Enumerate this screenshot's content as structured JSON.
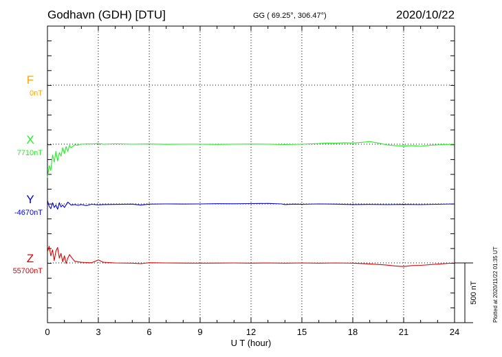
{
  "header": {
    "station": "Godhavn (GDH)  [DTU]",
    "coords": "GG ( 69.25°, 306.47°)",
    "date": "2020/10/22"
  },
  "footer": {
    "plotted": "Plotted at 2020/11/22 01:35 UT"
  },
  "chart_data": {
    "type": "line",
    "xlabel": "U T (hour)",
    "xlim": [
      0,
      24
    ],
    "xticks": [
      0,
      3,
      6,
      9,
      12,
      15,
      18,
      21,
      24
    ],
    "scale_bar": {
      "label": "500 nT",
      "value_nT": 500
    },
    "grid": true,
    "series": [
      {
        "name": "F",
        "baseline_label": "0nT",
        "color": "#FFA500",
        "points": []
      },
      {
        "name": "X",
        "baseline_label": "7710nT",
        "color": "#22EE22",
        "points": [
          [
            0,
            -280
          ],
          [
            0.1,
            -180
          ],
          [
            0.2,
            -220
          ],
          [
            0.3,
            -90
          ],
          [
            0.4,
            -150
          ],
          [
            0.5,
            -60
          ],
          [
            0.6,
            -140
          ],
          [
            0.7,
            -70
          ],
          [
            0.8,
            -100
          ],
          [
            0.9,
            -30
          ],
          [
            1.0,
            -80
          ],
          [
            1.1,
            -20
          ],
          [
            1.2,
            -60
          ],
          [
            1.3,
            -10
          ],
          [
            1.4,
            -30
          ],
          [
            1.6,
            -5
          ],
          [
            1.8,
            -8
          ],
          [
            2.0,
            0
          ],
          [
            2.3,
            2
          ],
          [
            2.6,
            1
          ],
          [
            3.0,
            5
          ],
          [
            3.3,
            0
          ],
          [
            4.0,
            3
          ],
          [
            5.0,
            0
          ],
          [
            6.0,
            2
          ],
          [
            7.0,
            -1
          ],
          [
            8.0,
            0
          ],
          [
            9.0,
            0
          ],
          [
            10.0,
            -2
          ],
          [
            11.0,
            0
          ],
          [
            12.0,
            1
          ],
          [
            13.0,
            0
          ],
          [
            14.0,
            -3
          ],
          [
            15.0,
            0
          ],
          [
            16.0,
            5
          ],
          [
            16.5,
            10
          ],
          [
            17.0,
            8
          ],
          [
            17.5,
            12
          ],
          [
            18.0,
            10
          ],
          [
            18.5,
            15
          ],
          [
            19.0,
            22
          ],
          [
            19.5,
            10
          ],
          [
            20.0,
            -5
          ],
          [
            20.5,
            -12
          ],
          [
            21.0,
            -15
          ],
          [
            21.5,
            -12
          ],
          [
            22.0,
            -18
          ],
          [
            22.5,
            -10
          ],
          [
            23.0,
            -5
          ],
          [
            23.5,
            -2
          ],
          [
            24.0,
            0
          ]
        ]
      },
      {
        "name": "Y",
        "baseline_label": "-4670nT",
        "color": "#0000DD",
        "points": [
          [
            0,
            30
          ],
          [
            0.1,
            -20
          ],
          [
            0.2,
            -40
          ],
          [
            0.3,
            10
          ],
          [
            0.4,
            -30
          ],
          [
            0.5,
            -10
          ],
          [
            0.6,
            -45
          ],
          [
            0.7,
            10
          ],
          [
            0.8,
            -25
          ],
          [
            0.9,
            -10
          ],
          [
            1.0,
            -30
          ],
          [
            1.2,
            15
          ],
          [
            1.4,
            -10
          ],
          [
            1.6,
            -5
          ],
          [
            1.8,
            -12
          ],
          [
            2.0,
            -5
          ],
          [
            2.3,
            -15
          ],
          [
            2.6,
            -3
          ],
          [
            3.0,
            -8
          ],
          [
            3.3,
            -5
          ],
          [
            4.0,
            -4
          ],
          [
            5.0,
            -2
          ],
          [
            5.5,
            -10
          ],
          [
            6.0,
            -2
          ],
          [
            7.0,
            0
          ],
          [
            8.0,
            -1
          ],
          [
            9.0,
            0
          ],
          [
            10.0,
            2
          ],
          [
            11.0,
            1
          ],
          [
            12.0,
            3
          ],
          [
            13.0,
            4
          ],
          [
            13.8,
            0
          ],
          [
            14.0,
            -5
          ],
          [
            14.5,
            -2
          ],
          [
            15.0,
            -3
          ],
          [
            16.0,
            0
          ],
          [
            17.0,
            -2
          ],
          [
            18.0,
            -5
          ],
          [
            19.0,
            -4
          ],
          [
            20.0,
            -6
          ],
          [
            21.0,
            -4
          ],
          [
            22.0,
            -6
          ],
          [
            23.0,
            -3
          ],
          [
            24.0,
            0
          ]
        ]
      },
      {
        "name": "Z",
        "baseline_label": "55700nT",
        "color": "#DD0000",
        "points": [
          [
            0,
            90
          ],
          [
            0.1,
            140
          ],
          [
            0.2,
            60
          ],
          [
            0.3,
            110
          ],
          [
            0.4,
            20
          ],
          [
            0.5,
            100
          ],
          [
            0.6,
            130
          ],
          [
            0.7,
            40
          ],
          [
            0.8,
            80
          ],
          [
            0.9,
            10
          ],
          [
            1.0,
            60
          ],
          [
            1.1,
            -5
          ],
          [
            1.2,
            40
          ],
          [
            1.3,
            70
          ],
          [
            1.4,
            50
          ],
          [
            1.6,
            15
          ],
          [
            1.8,
            10
          ],
          [
            2.0,
            5
          ],
          [
            2.3,
            3
          ],
          [
            2.6,
            2
          ],
          [
            3.0,
            25
          ],
          [
            3.3,
            5
          ],
          [
            4.0,
            0
          ],
          [
            5.0,
            -2
          ],
          [
            5.5,
            -6
          ],
          [
            6.0,
            2
          ],
          [
            7.0,
            0
          ],
          [
            8.0,
            -1
          ],
          [
            9.0,
            -2
          ],
          [
            10.0,
            -1
          ],
          [
            11.0,
            0
          ],
          [
            12.0,
            -2
          ],
          [
            13.0,
            0
          ],
          [
            14.0,
            -2
          ],
          [
            15.0,
            0
          ],
          [
            16.0,
            -2
          ],
          [
            17.0,
            0
          ],
          [
            18.0,
            -2
          ],
          [
            19.0,
            -8
          ],
          [
            20.0,
            -18
          ],
          [
            20.5,
            -25
          ],
          [
            21.0,
            -30
          ],
          [
            21.5,
            -22
          ],
          [
            22.0,
            -20
          ],
          [
            23.0,
            -10
          ],
          [
            24.0,
            0
          ]
        ]
      }
    ]
  }
}
